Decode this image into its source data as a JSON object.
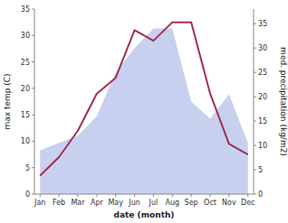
{
  "chart_data": {
    "type": "line",
    "categories": [
      "Jan",
      "Feb",
      "Mar",
      "Apr",
      "May",
      "Jun",
      "Jul",
      "Aug",
      "Sep",
      "Oct",
      "Nov",
      "Dec"
    ],
    "xlabel": "date (month)",
    "ylabel": "max temp (C)",
    "y2label": "med. precipitation (kg/m2)",
    "ylim": [
      0,
      35
    ],
    "yticks": [
      0,
      5,
      10,
      15,
      20,
      25,
      30,
      35
    ],
    "y2lim": [
      0,
      38
    ],
    "y2ticks": [
      0,
      5,
      10,
      15,
      20,
      25,
      30,
      35
    ],
    "grid": false,
    "series": [
      {
        "type": "area",
        "axis": "y2",
        "color": "#c8d0f0",
        "values": [
          9.0,
          10.5,
          12.0,
          16.0,
          25.0,
          30.0,
          34.0,
          34.0,
          19.0,
          15.5,
          20.5,
          10.5
        ]
      },
      {
        "type": "line",
        "color": "#a03050",
        "values": [
          3.5,
          7.0,
          12.0,
          19.0,
          22.0,
          31.0,
          29.0,
          32.5,
          32.5,
          19.0,
          9.5,
          7.5
        ]
      }
    ]
  }
}
